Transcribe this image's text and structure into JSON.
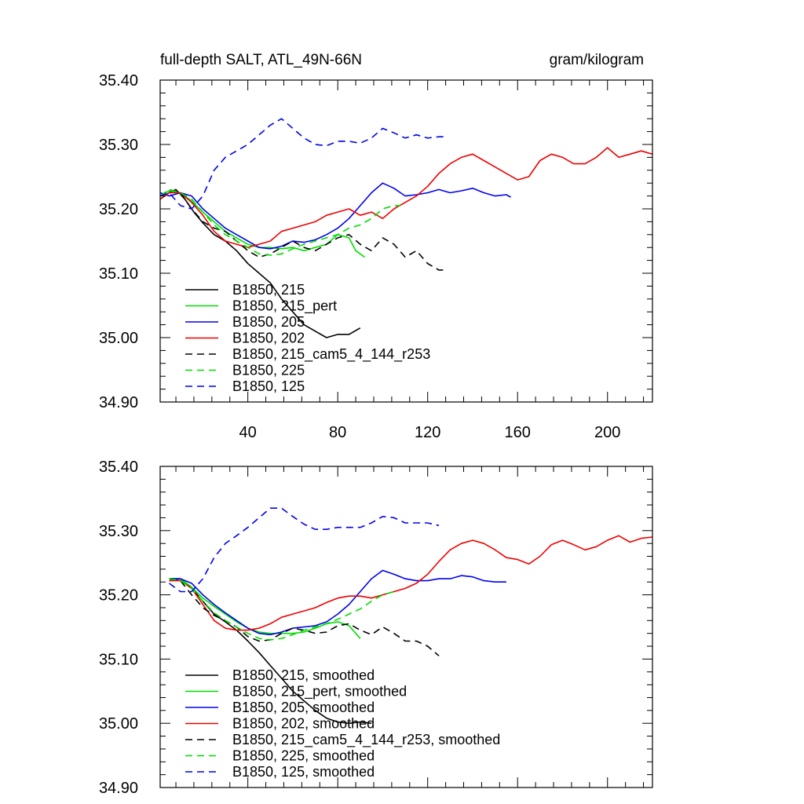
{
  "chart_data": [
    {
      "type": "line",
      "title_left": "full-depth SALT, ATL_49N-66N",
      "title_right": "gram/kilogram",
      "xlim": [
        1,
        220
      ],
      "ylim": [
        34.9,
        35.4
      ],
      "x_ticks": [
        40,
        80,
        120,
        160,
        200
      ],
      "y_ticks": [
        "35.40",
        "35.30",
        "35.20",
        "35.10",
        "35.00",
        "34.90"
      ],
      "show_x_labels": true,
      "series": [
        {
          "name": "B1850, 215",
          "color": "#000000",
          "dash": false,
          "x": [
            1,
            5,
            8,
            12,
            16,
            20,
            25,
            30,
            35,
            40,
            45,
            50,
            55,
            60,
            65,
            70,
            75,
            80,
            85,
            90
          ],
          "y": [
            35.215,
            35.225,
            35.23,
            35.215,
            35.195,
            35.178,
            35.16,
            35.15,
            35.135,
            35.115,
            35.1,
            35.085,
            35.06,
            35.04,
            35.02,
            35.01,
            35.0,
            35.005,
            35.005,
            35.015
          ]
        },
        {
          "name": "B1850, 215_pert",
          "color": "#00dd00",
          "dash": false,
          "x": [
            1,
            5,
            9,
            14,
            20,
            25,
            30,
            35,
            40,
            45,
            50,
            55,
            60,
            65,
            70,
            75,
            80,
            85,
            88,
            92
          ],
          "y": [
            35.22,
            35.228,
            35.225,
            35.215,
            35.195,
            35.18,
            35.165,
            35.155,
            35.145,
            35.14,
            35.14,
            35.138,
            35.14,
            35.135,
            35.14,
            35.145,
            35.16,
            35.155,
            35.135,
            35.125
          ]
        },
        {
          "name": "B1850, 205",
          "color": "#0000ee",
          "dash": false,
          "x": [
            1,
            5,
            10,
            15,
            20,
            25,
            30,
            35,
            40,
            45,
            50,
            55,
            60,
            65,
            70,
            75,
            80,
            85,
            90,
            95,
            100,
            105,
            110,
            115,
            120,
            125,
            130,
            135,
            140,
            145,
            150,
            155,
            157
          ],
          "y": [
            35.225,
            35.22,
            35.225,
            35.22,
            35.2,
            35.185,
            35.17,
            35.16,
            35.15,
            35.14,
            35.138,
            35.142,
            35.15,
            35.148,
            35.152,
            35.16,
            35.17,
            35.185,
            35.205,
            35.225,
            35.24,
            35.232,
            35.22,
            35.222,
            35.225,
            35.23,
            35.225,
            35.228,
            35.232,
            35.225,
            35.22,
            35.222,
            35.218
          ]
        },
        {
          "name": "B1850, 202",
          "color": "#ee0000",
          "dash": false,
          "x": [
            1,
            5,
            10,
            15,
            20,
            25,
            30,
            35,
            40,
            45,
            50,
            55,
            60,
            65,
            70,
            75,
            80,
            85,
            90,
            95,
            100,
            105,
            110,
            115,
            120,
            125,
            130,
            135,
            140,
            145,
            150,
            155,
            160,
            165,
            170,
            175,
            180,
            185,
            190,
            195,
            200,
            205,
            210,
            215,
            220
          ],
          "y": [
            35.215,
            35.225,
            35.225,
            35.21,
            35.19,
            35.165,
            35.15,
            35.145,
            35.14,
            35.145,
            35.15,
            35.165,
            35.17,
            35.175,
            35.18,
            35.19,
            35.195,
            35.2,
            35.19,
            35.195,
            35.185,
            35.2,
            35.21,
            35.22,
            35.235,
            35.255,
            35.27,
            35.28,
            35.285,
            35.275,
            35.265,
            35.255,
            35.245,
            35.25,
            35.275,
            35.285,
            35.28,
            35.27,
            35.27,
            35.28,
            35.295,
            35.28,
            35.285,
            35.29,
            35.285
          ]
        },
        {
          "name": "B1850, 215_cam5_4_144_r253",
          "color": "#000000",
          "dash": true,
          "x": [
            1,
            5,
            10,
            15,
            20,
            25,
            30,
            35,
            40,
            45,
            50,
            55,
            60,
            65,
            70,
            75,
            80,
            85,
            90,
            95,
            100,
            105,
            110,
            115,
            120,
            125,
            127
          ],
          "y": [
            35.22,
            35.23,
            35.225,
            35.2,
            35.18,
            35.17,
            35.165,
            35.15,
            35.135,
            35.125,
            35.13,
            35.14,
            35.15,
            35.14,
            35.135,
            35.145,
            35.155,
            35.16,
            35.145,
            35.135,
            35.155,
            35.145,
            35.125,
            35.135,
            35.115,
            35.105,
            35.105
          ]
        },
        {
          "name": "B1850, 225",
          "color": "#00dd00",
          "dash": true,
          "x": [
            1,
            5,
            10,
            15,
            20,
            25,
            30,
            35,
            40,
            45,
            50,
            55,
            60,
            65,
            70,
            75,
            80,
            85,
            90,
            95,
            100,
            105,
            108
          ],
          "y": [
            35.22,
            35.23,
            35.225,
            35.215,
            35.195,
            35.175,
            35.16,
            35.15,
            35.14,
            35.13,
            35.128,
            35.13,
            35.138,
            35.145,
            35.15,
            35.155,
            35.16,
            35.17,
            35.175,
            35.185,
            35.2,
            35.205,
            35.205
          ]
        },
        {
          "name": "B1850, 125",
          "color": "#0000ee",
          "dash": true,
          "x": [
            1,
            5,
            10,
            15,
            20,
            25,
            30,
            35,
            40,
            45,
            50,
            55,
            60,
            65,
            70,
            75,
            80,
            85,
            90,
            95,
            100,
            105,
            110,
            115,
            120,
            125,
            127
          ],
          "y": [
            35.22,
            35.225,
            35.205,
            35.2,
            35.22,
            35.26,
            35.28,
            35.29,
            35.3,
            35.315,
            35.33,
            35.34,
            35.325,
            35.31,
            35.3,
            35.298,
            35.305,
            35.305,
            35.302,
            35.31,
            35.325,
            35.318,
            35.31,
            35.315,
            35.31,
            35.312,
            35.312
          ]
        }
      ]
    },
    {
      "type": "line",
      "xlim": [
        1,
        220
      ],
      "ylim": [
        34.9,
        35.4
      ],
      "x_ticks": [
        40,
        80,
        120,
        160,
        200
      ],
      "y_ticks": [
        "35.40",
        "35.30",
        "35.20",
        "35.10",
        "35.00",
        "34.90"
      ],
      "show_x_labels": false,
      "series": [
        {
          "name": "B1850, 215, smoothed",
          "color": "#000000",
          "dash": false,
          "x": [
            5,
            10,
            15,
            20,
            25,
            30,
            35,
            40,
            45,
            50,
            55,
            60,
            65,
            70,
            75,
            80,
            85,
            90,
            95
          ],
          "y": [
            35.222,
            35.225,
            35.21,
            35.19,
            35.17,
            35.158,
            35.145,
            35.128,
            35.11,
            35.09,
            35.07,
            35.05,
            35.035,
            35.02,
            35.008,
            35.002,
            35.0,
            35.002,
            35.0
          ]
        },
        {
          "name": "B1850, 215_pert, smoothed",
          "color": "#00dd00",
          "dash": false,
          "x": [
            5,
            10,
            15,
            20,
            25,
            30,
            35,
            40,
            45,
            50,
            55,
            60,
            65,
            70,
            75,
            80,
            85,
            90
          ],
          "y": [
            35.225,
            35.225,
            35.212,
            35.195,
            35.182,
            35.17,
            35.158,
            35.148,
            35.142,
            35.14,
            35.14,
            35.14,
            35.142,
            35.148,
            35.155,
            35.158,
            35.152,
            35.132
          ]
        },
        {
          "name": "B1850, 205, smoothed",
          "color": "#0000ee",
          "dash": false,
          "x": [
            5,
            10,
            15,
            20,
            25,
            30,
            35,
            40,
            45,
            50,
            55,
            60,
            65,
            70,
            75,
            80,
            85,
            90,
            95,
            100,
            105,
            110,
            115,
            120,
            125,
            130,
            135,
            140,
            145,
            150,
            155
          ],
          "y": [
            35.225,
            35.225,
            35.218,
            35.2,
            35.185,
            35.172,
            35.16,
            35.148,
            35.14,
            35.138,
            35.142,
            35.148,
            35.15,
            35.152,
            35.158,
            35.17,
            35.185,
            35.205,
            35.225,
            35.238,
            35.232,
            35.225,
            35.222,
            35.222,
            35.225,
            35.225,
            35.23,
            35.228,
            35.222,
            35.22,
            35.22
          ]
        },
        {
          "name": "B1850, 202, smoothed",
          "color": "#ee0000",
          "dash": false,
          "x": [
            5,
            10,
            15,
            20,
            25,
            30,
            35,
            40,
            45,
            50,
            55,
            60,
            65,
            70,
            75,
            80,
            85,
            90,
            95,
            100,
            105,
            110,
            115,
            120,
            125,
            130,
            135,
            140,
            145,
            150,
            155,
            160,
            165,
            170,
            175,
            180,
            185,
            190,
            195,
            200,
            205,
            210,
            215,
            220
          ],
          "y": [
            35.222,
            35.222,
            35.21,
            35.185,
            35.16,
            35.148,
            35.145,
            35.145,
            35.148,
            35.155,
            35.165,
            35.17,
            35.175,
            35.18,
            35.188,
            35.195,
            35.198,
            35.198,
            35.195,
            35.2,
            35.205,
            35.21,
            35.218,
            35.232,
            35.252,
            35.27,
            35.28,
            35.285,
            35.28,
            35.27,
            35.258,
            35.255,
            35.248,
            35.26,
            35.278,
            35.285,
            35.278,
            35.27,
            35.275,
            35.285,
            35.292,
            35.282,
            35.288,
            35.29
          ]
        },
        {
          "name": "B1850, 215_cam5_4_144_r253, smoothed",
          "color": "#000000",
          "dash": true,
          "x": [
            5,
            10,
            15,
            20,
            25,
            30,
            35,
            40,
            45,
            50,
            55,
            60,
            65,
            70,
            75,
            80,
            85,
            90,
            95,
            100,
            105,
            110,
            115,
            120,
            125
          ],
          "y": [
            35.225,
            35.222,
            35.2,
            35.18,
            35.168,
            35.16,
            35.15,
            35.135,
            35.128,
            35.13,
            35.14,
            35.148,
            35.145,
            35.14,
            35.142,
            35.152,
            35.155,
            35.145,
            35.138,
            35.15,
            35.14,
            35.128,
            35.128,
            35.12,
            35.105
          ]
        },
        {
          "name": "B1850, 225, smoothed",
          "color": "#00dd00",
          "dash": true,
          "x": [
            5,
            10,
            15,
            20,
            25,
            30,
            35,
            40,
            45,
            50,
            55,
            60,
            65,
            70,
            75,
            80,
            85,
            90,
            95,
            100,
            105
          ],
          "y": [
            35.225,
            35.222,
            35.21,
            35.19,
            35.172,
            35.16,
            35.15,
            35.14,
            35.132,
            35.13,
            35.132,
            35.138,
            35.145,
            35.15,
            35.155,
            35.162,
            35.17,
            35.178,
            35.19,
            35.2,
            35.205
          ]
        },
        {
          "name": "B1850, 125, smoothed",
          "color": "#0000ee",
          "dash": true,
          "x": [
            5,
            10,
            15,
            20,
            25,
            30,
            35,
            40,
            45,
            50,
            55,
            60,
            65,
            70,
            75,
            80,
            85,
            90,
            95,
            100,
            105,
            110,
            115,
            120,
            125
          ],
          "y": [
            35.218,
            35.205,
            35.205,
            35.225,
            35.258,
            35.28,
            35.292,
            35.305,
            35.32,
            35.335,
            35.335,
            35.322,
            35.31,
            35.302,
            35.302,
            35.305,
            35.305,
            35.305,
            35.312,
            35.322,
            35.32,
            35.312,
            35.312,
            35.312,
            35.308
          ]
        }
      ]
    }
  ]
}
